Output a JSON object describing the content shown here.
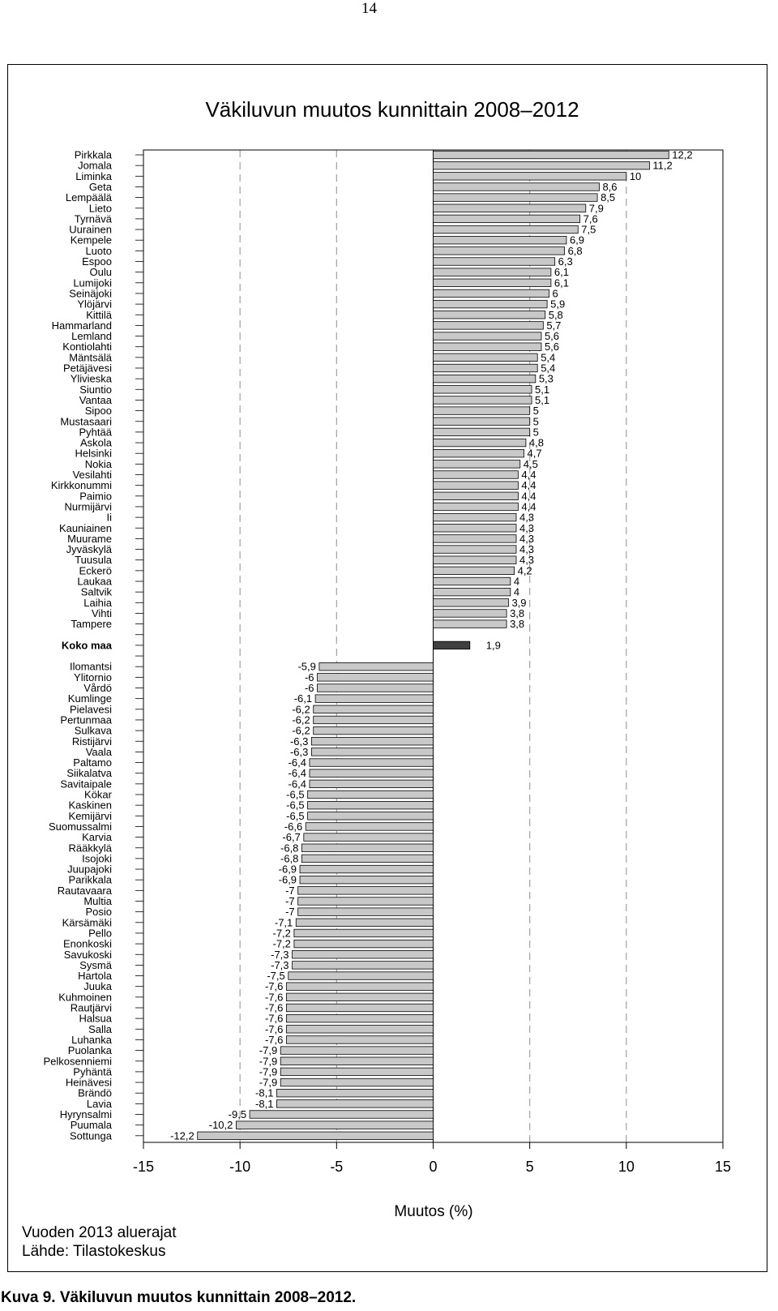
{
  "page_number": "14",
  "caption": "Kuva 9. Väkiluvun muutos kunnittain 2008–2012.",
  "colors": {
    "bar_fill": "#c8c8c8",
    "total_fill": "#404040",
    "bar_stroke": "#000000",
    "grid": "#a0a0a0"
  },
  "chart_data": {
    "type": "bar",
    "orientation": "horizontal",
    "title": "Väkiluvun muutos kunnittain 2008–2012",
    "xlabel": "Muutos (%)",
    "ylabel": "",
    "xlim": [
      -15,
      15
    ],
    "xticks": [
      "-15",
      "-10",
      "-5",
      "0",
      "5",
      "10",
      "15"
    ],
    "grid": "vertical dashed at ±5, ±10",
    "notes": [
      "Vuoden 2013 aluerajat",
      "Lähde: Tilastokeskus"
    ],
    "total": {
      "label": "Koko maa",
      "value": 1.9,
      "value_label": "1,9"
    },
    "top": [
      {
        "label": "Pirkkala",
        "value": 12.2,
        "value_label": "12,2"
      },
      {
        "label": "Jomala",
        "value": 11.2,
        "value_label": "11,2"
      },
      {
        "label": "Liminka",
        "value": 10,
        "value_label": "10"
      },
      {
        "label": "Geta",
        "value": 8.6,
        "value_label": "8,6"
      },
      {
        "label": "Lempäälä",
        "value": 8.5,
        "value_label": "8,5"
      },
      {
        "label": "Lieto",
        "value": 7.9,
        "value_label": "7,9"
      },
      {
        "label": "Tyrnävä",
        "value": 7.6,
        "value_label": "7,6"
      },
      {
        "label": "Uurainen",
        "value": 7.5,
        "value_label": "7,5"
      },
      {
        "label": "Kempele",
        "value": 6.9,
        "value_label": "6,9"
      },
      {
        "label": "Luoto",
        "value": 6.8,
        "value_label": "6,8"
      },
      {
        "label": "Espoo",
        "value": 6.3,
        "value_label": "6,3"
      },
      {
        "label": "Oulu",
        "value": 6.1,
        "value_label": "6,1"
      },
      {
        "label": "Lumijoki",
        "value": 6.1,
        "value_label": "6,1"
      },
      {
        "label": "Seinäjoki",
        "value": 6,
        "value_label": "6"
      },
      {
        "label": "Ylöjärvi",
        "value": 5.9,
        "value_label": "5,9"
      },
      {
        "label": "Kittilä",
        "value": 5.8,
        "value_label": "5,8"
      },
      {
        "label": "Hammarland",
        "value": 5.7,
        "value_label": "5,7"
      },
      {
        "label": "Lemland",
        "value": 5.6,
        "value_label": "5,6"
      },
      {
        "label": "Kontiolahti",
        "value": 5.6,
        "value_label": "5,6"
      },
      {
        "label": "Mäntsälä",
        "value": 5.4,
        "value_label": "5,4"
      },
      {
        "label": "Petäjävesi",
        "value": 5.4,
        "value_label": "5,4"
      },
      {
        "label": "Ylivieska",
        "value": 5.3,
        "value_label": "5,3"
      },
      {
        "label": "Siuntio",
        "value": 5.1,
        "value_label": "5,1"
      },
      {
        "label": "Vantaa",
        "value": 5.1,
        "value_label": "5,1"
      },
      {
        "label": "Sipoo",
        "value": 5,
        "value_label": "5"
      },
      {
        "label": "Mustasaari",
        "value": 5,
        "value_label": "5"
      },
      {
        "label": "Pyhtää",
        "value": 5,
        "value_label": "5"
      },
      {
        "label": "Askola",
        "value": 4.8,
        "value_label": "4,8"
      },
      {
        "label": "Helsinki",
        "value": 4.7,
        "value_label": "4,7"
      },
      {
        "label": "Nokia",
        "value": 4.5,
        "value_label": "4,5"
      },
      {
        "label": "Vesilahti",
        "value": 4.4,
        "value_label": "4,4"
      },
      {
        "label": "Kirkkonummi",
        "value": 4.4,
        "value_label": "4,4"
      },
      {
        "label": "Paimio",
        "value": 4.4,
        "value_label": "4,4"
      },
      {
        "label": "Nurmijärvi",
        "value": 4.4,
        "value_label": "4,4"
      },
      {
        "label": "Ii",
        "value": 4.3,
        "value_label": "4,3"
      },
      {
        "label": "Kauniainen",
        "value": 4.3,
        "value_label": "4,3"
      },
      {
        "label": "Muurame",
        "value": 4.3,
        "value_label": "4,3"
      },
      {
        "label": "Jyväskylä",
        "value": 4.3,
        "value_label": "4,3"
      },
      {
        "label": "Tuusula",
        "value": 4.3,
        "value_label": "4,3"
      },
      {
        "label": "Eckerö",
        "value": 4.2,
        "value_label": "4,2"
      },
      {
        "label": "Laukaa",
        "value": 4,
        "value_label": "4"
      },
      {
        "label": "Saltvik",
        "value": 4,
        "value_label": "4"
      },
      {
        "label": "Laihia",
        "value": 3.9,
        "value_label": "3,9"
      },
      {
        "label": "Vihti",
        "value": 3.8,
        "value_label": "3,8"
      },
      {
        "label": "Tampere",
        "value": 3.8,
        "value_label": "3,8"
      }
    ],
    "bottom": [
      {
        "label": "Ilomantsi",
        "value": -5.9,
        "value_label": "-5,9"
      },
      {
        "label": "Ylitornio",
        "value": -6,
        "value_label": "-6"
      },
      {
        "label": "Vårdö",
        "value": -6,
        "value_label": "-6"
      },
      {
        "label": "Kumlinge",
        "value": -6.1,
        "value_label": "-6,1"
      },
      {
        "label": "Pielavesi",
        "value": -6.2,
        "value_label": "-6,2"
      },
      {
        "label": "Pertunmaa",
        "value": -6.2,
        "value_label": "-6,2"
      },
      {
        "label": "Sulkava",
        "value": -6.2,
        "value_label": "-6,2"
      },
      {
        "label": "Ristijärvi",
        "value": -6.3,
        "value_label": "-6,3"
      },
      {
        "label": "Vaala",
        "value": -6.3,
        "value_label": "-6,3"
      },
      {
        "label": "Paltamo",
        "value": -6.4,
        "value_label": "-6,4"
      },
      {
        "label": "Siikalatva",
        "value": -6.4,
        "value_label": "-6,4"
      },
      {
        "label": "Savitaipale",
        "value": -6.4,
        "value_label": "-6,4"
      },
      {
        "label": "Kökar",
        "value": -6.5,
        "value_label": "-6,5"
      },
      {
        "label": "Kaskinen",
        "value": -6.5,
        "value_label": "-6,5"
      },
      {
        "label": "Kemijärvi",
        "value": -6.5,
        "value_label": "-6,5"
      },
      {
        "label": "Suomussalmi",
        "value": -6.6,
        "value_label": "-6,6"
      },
      {
        "label": "Karvia",
        "value": -6.7,
        "value_label": "-6,7"
      },
      {
        "label": "Rääkkylä",
        "value": -6.8,
        "value_label": "-6,8"
      },
      {
        "label": "Isojoki",
        "value": -6.8,
        "value_label": "-6,8"
      },
      {
        "label": "Juupajoki",
        "value": -6.9,
        "value_label": "-6,9"
      },
      {
        "label": "Parikkala",
        "value": -6.9,
        "value_label": "-6,9"
      },
      {
        "label": "Rautavaara",
        "value": -7,
        "value_label": "-7"
      },
      {
        "label": "Multia",
        "value": -7,
        "value_label": "-7"
      },
      {
        "label": "Posio",
        "value": -7,
        "value_label": "-7"
      },
      {
        "label": "Kärsämäki",
        "value": -7.1,
        "value_label": "-7,1"
      },
      {
        "label": "Pello",
        "value": -7.2,
        "value_label": "-7,2"
      },
      {
        "label": "Enonkoski",
        "value": -7.2,
        "value_label": "-7,2"
      },
      {
        "label": "Savukoski",
        "value": -7.3,
        "value_label": "-7,3"
      },
      {
        "label": "Sysmä",
        "value": -7.3,
        "value_label": "-7,3"
      },
      {
        "label": "Hartola",
        "value": -7.5,
        "value_label": "-7,5"
      },
      {
        "label": "Juuka",
        "value": -7.6,
        "value_label": "-7,6"
      },
      {
        "label": "Kuhmoinen",
        "value": -7.6,
        "value_label": "-7,6"
      },
      {
        "label": "Rautjärvi",
        "value": -7.6,
        "value_label": "-7,6"
      },
      {
        "label": "Halsua",
        "value": -7.6,
        "value_label": "-7,6"
      },
      {
        "label": "Salla",
        "value": -7.6,
        "value_label": "-7,6"
      },
      {
        "label": "Luhanka",
        "value": -7.6,
        "value_label": "-7,6"
      },
      {
        "label": "Puolanka",
        "value": -7.9,
        "value_label": "-7,9"
      },
      {
        "label": "Pelkosenniemi",
        "value": -7.9,
        "value_label": "-7,9"
      },
      {
        "label": "Pyhäntä",
        "value": -7.9,
        "value_label": "-7,9"
      },
      {
        "label": "Heinävesi",
        "value": -7.9,
        "value_label": "-7,9"
      },
      {
        "label": "Brändö",
        "value": -8.1,
        "value_label": "-8,1"
      },
      {
        "label": "Lavia",
        "value": -8.1,
        "value_label": "-8,1"
      },
      {
        "label": "Hyrynsalmi",
        "value": -9.5,
        "value_label": "-9,5"
      },
      {
        "label": "Puumala",
        "value": -10.2,
        "value_label": "-10,2"
      },
      {
        "label": "Sottunga",
        "value": -12.2,
        "value_label": "-12,2"
      }
    ]
  }
}
